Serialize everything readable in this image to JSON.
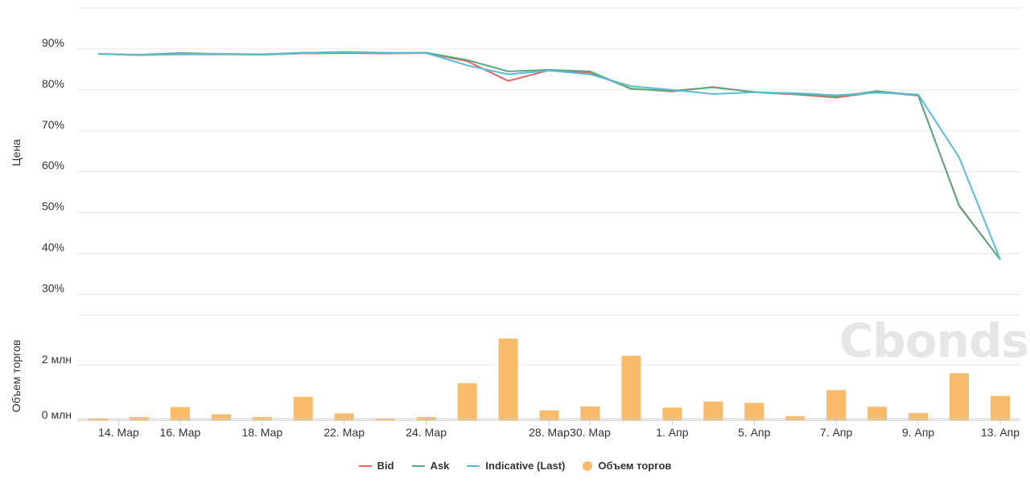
{
  "watermark": "Cbonds",
  "chart_data": [
    {
      "type": "line",
      "ylabel": "Цена",
      "ylim": [
        25,
        100
      ],
      "yticks": [
        30,
        40,
        50,
        60,
        70,
        80,
        90
      ],
      "ytick_labels": [
        "30%",
        "40%",
        "50%",
        "60%",
        "70%",
        "80%",
        "90%"
      ],
      "x_index": [
        0,
        1,
        2,
        3,
        4,
        5,
        6,
        7,
        8,
        9,
        10,
        11,
        12,
        13,
        14,
        15,
        16,
        17,
        18,
        19,
        20,
        21,
        22
      ],
      "series": [
        {
          "name": "Bid",
          "color": "#e8676b",
          "values": [
            88.8,
            88.5,
            88.7,
            88.7,
            88.6,
            88.9,
            89.0,
            88.9,
            89.0,
            87.0,
            82.2,
            84.8,
            84.2,
            80.3,
            79.6,
            80.7,
            79.4,
            78.9,
            78.1,
            79.5,
            78.6,
            51.8,
            38.5
          ]
        },
        {
          "name": "Ask",
          "color": "#5aaa7f",
          "values": [
            88.8,
            88.6,
            89.0,
            88.8,
            88.7,
            89.1,
            89.2,
            89.0,
            89.1,
            87.3,
            84.5,
            84.9,
            84.5,
            80.2,
            79.8,
            80.6,
            79.5,
            79.0,
            78.4,
            79.7,
            78.7,
            51.6,
            38.5
          ]
        },
        {
          "name": "Indicative (Last)",
          "color": "#5bbcd6",
          "values": [
            88.8,
            88.5,
            88.8,
            88.8,
            88.6,
            89.0,
            89.3,
            89.1,
            89.0,
            86.0,
            83.8,
            84.7,
            83.8,
            80.9,
            80.0,
            79.0,
            79.4,
            79.2,
            78.7,
            79.3,
            78.9,
            63.5,
            38.5
          ]
        }
      ]
    },
    {
      "type": "bar",
      "ylabel": "Объем торгов",
      "ylim": [
        -0.2,
        3.8
      ],
      "yticks": [
        0,
        2
      ],
      "ytick_labels": [
        "0 млн",
        "2 млн"
      ],
      "x_index": [
        0,
        1,
        2,
        3,
        4,
        5,
        6,
        7,
        8,
        9,
        10,
        11,
        12,
        13,
        14,
        15,
        16,
        17,
        18,
        19,
        20,
        21,
        22
      ],
      "series": [
        {
          "name": "Объем торгов",
          "color": "#f8bb6a",
          "values": [
            0.07,
            0.12,
            0.48,
            0.22,
            0.12,
            0.85,
            0.25,
            0.05,
            0.12,
            1.34,
            2.95,
            0.36,
            0.5,
            2.33,
            0.46,
            0.68,
            0.63,
            0.15,
            1.09,
            0.49,
            0.26,
            1.7,
            0.88
          ]
        }
      ]
    }
  ],
  "x_axis": {
    "ticks": [
      {
        "index": 0.5,
        "label": "14. Мар"
      },
      {
        "index": 2,
        "label": "16. Мар"
      },
      {
        "index": 4,
        "label": "18. Мар"
      },
      {
        "index": 6,
        "label": "22. Мар"
      },
      {
        "index": 8,
        "label": "24. Мар"
      },
      {
        "index": 11,
        "label": "28. Мар"
      },
      {
        "index": 12,
        "label": "30. Мар"
      },
      {
        "index": 14,
        "label": "1. Апр"
      },
      {
        "index": 16,
        "label": "5. Апр"
      },
      {
        "index": 18,
        "label": "7. Апр"
      },
      {
        "index": 20,
        "label": "9. Апр"
      },
      {
        "index": 22,
        "label": "13. Апр"
      }
    ]
  },
  "legend": {
    "bid": "Bid",
    "ask": "Ask",
    "indicative": "Indicative (Last)",
    "volume": "Объем торгов",
    "bid_color": "#e8676b",
    "ask_color": "#5aaa7f",
    "indicative_color": "#5bbcd6",
    "volume_color": "#f8bb6a"
  }
}
